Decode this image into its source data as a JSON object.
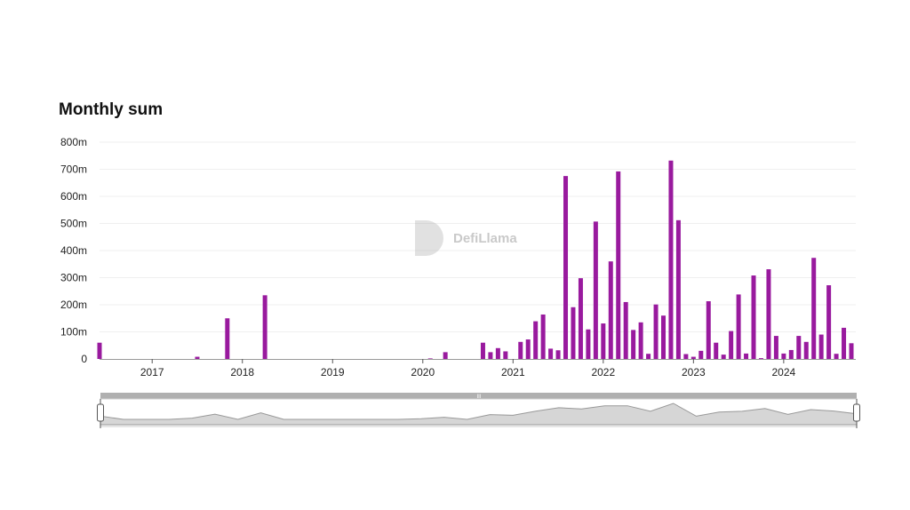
{
  "title": "Monthly sum",
  "watermark": "DefiLlama",
  "colors": {
    "bar": "#991a9e",
    "grid": "#efefef",
    "brush_bar": "#b0b0b0",
    "brush_fill": "#d6d6d6",
    "brush_line": "#999999"
  },
  "chart_data": {
    "type": "bar",
    "title": "Monthly sum",
    "xlabel": "",
    "ylabel": "",
    "ylim": [
      0,
      800
    ],
    "y_unit": "m (millions)",
    "y_ticks": [
      "0",
      "100m",
      "200m",
      "300m",
      "400m",
      "500m",
      "600m",
      "700m",
      "800m"
    ],
    "x_ticks": [
      "2017",
      "2018",
      "2019",
      "2020",
      "2021",
      "2022",
      "2023",
      "2024"
    ],
    "grid": true,
    "start_month": "2016-06",
    "series": [
      {
        "name": "Monthly sum",
        "values": [
          60,
          0,
          0,
          0,
          0,
          0,
          0,
          0,
          0,
          0,
          0,
          0,
          0,
          8,
          0,
          0,
          0,
          150,
          0,
          0,
          0,
          0,
          235,
          0,
          0,
          0,
          0,
          0,
          0,
          0,
          0,
          0,
          0,
          0,
          0,
          0,
          0,
          0,
          0,
          0,
          0,
          0,
          0,
          0,
          2,
          0,
          25,
          0,
          0,
          0,
          0,
          60,
          25,
          40,
          28,
          0,
          63,
          72,
          139,
          164,
          38,
          32,
          675,
          191,
          298,
          109,
          507,
          131,
          360,
          692,
          210,
          107,
          135,
          19,
          201,
          160,
          732,
          512,
          18,
          8,
          30,
          213,
          60,
          16,
          103,
          238,
          20,
          308,
          3,
          331,
          85,
          20,
          33,
          85,
          63,
          373,
          90,
          272,
          19,
          115,
          58
        ]
      }
    ]
  }
}
